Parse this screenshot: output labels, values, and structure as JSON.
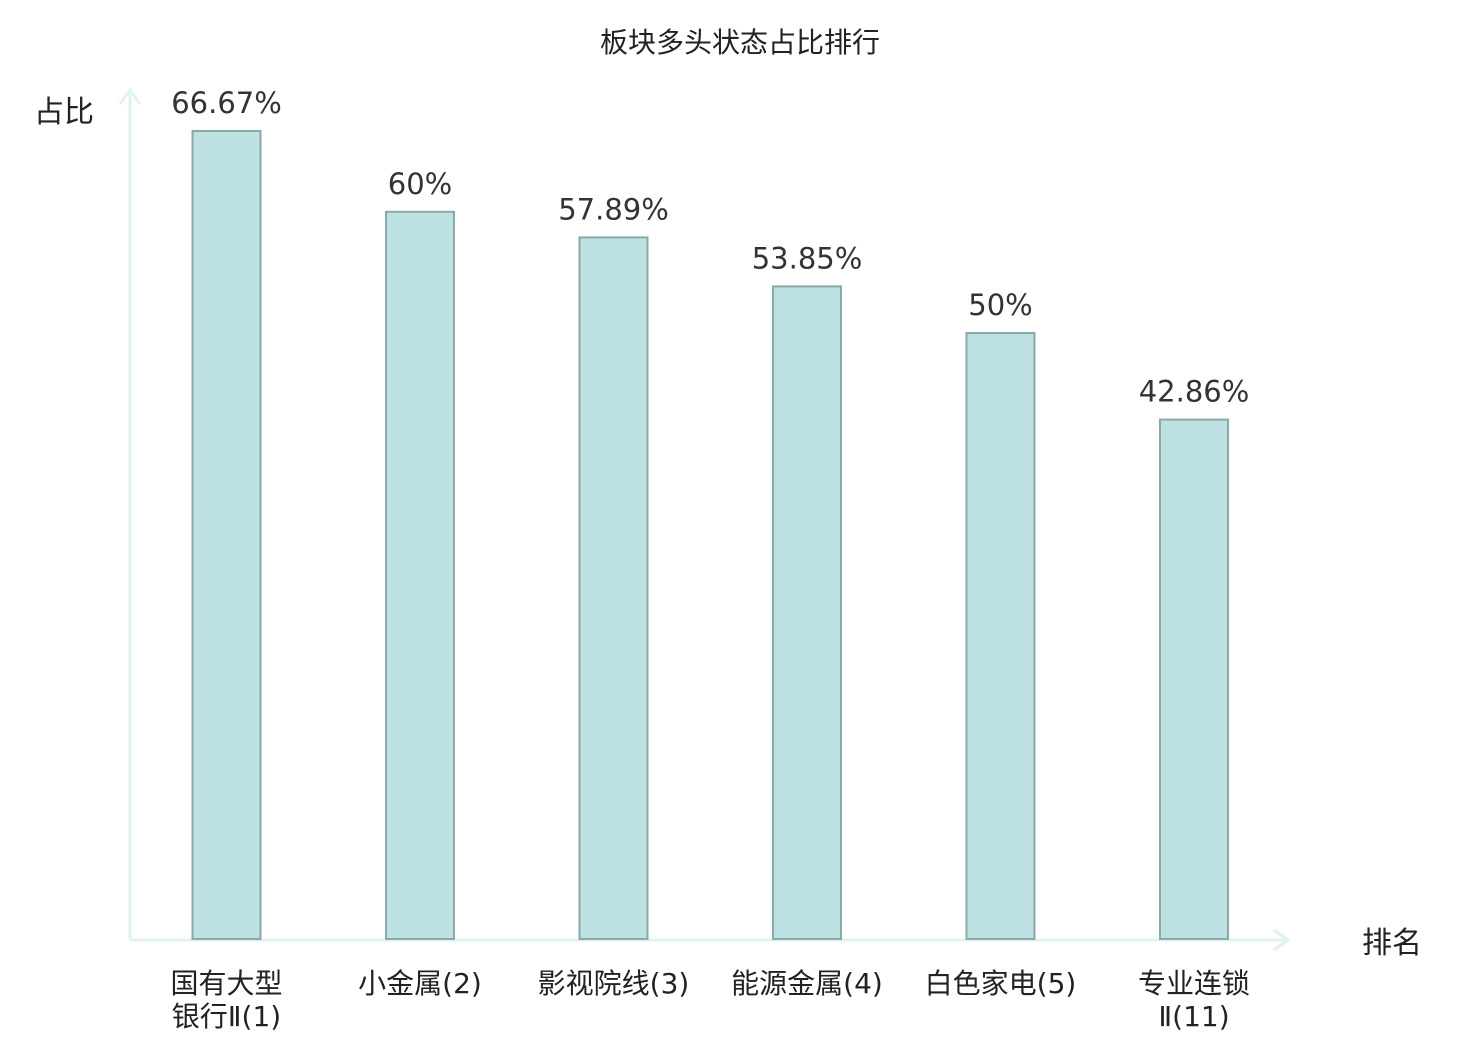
{
  "chart_data": {
    "type": "bar",
    "title": "板块多头状态占比排行",
    "xlabel": "排名",
    "ylabel": "占比",
    "categories": [
      "国有大型银行Ⅱ(1)",
      "小金属(2)",
      "影视院线(3)",
      "能源金属(4)",
      "白色家电(5)",
      "专业连锁Ⅱ(11)"
    ],
    "category_lines": [
      [
        "国有大型",
        "银行Ⅱ(1)"
      ],
      [
        "小金属(2)"
      ],
      [
        "影视院线(3)"
      ],
      [
        "能源金属(4)"
      ],
      [
        "白色家电(5)"
      ],
      [
        "专业连锁",
        "Ⅱ(11)"
      ]
    ],
    "values": [
      66.67,
      60,
      57.89,
      53.85,
      50,
      42.86
    ],
    "value_labels": [
      "66.67%",
      "60%",
      "57.89%",
      "53.85%",
      "50%",
      "42.86%"
    ],
    "highlight_index": 5,
    "ylim": [
      0,
      66.67
    ],
    "grid": false,
    "colors": {
      "bar_fill": "#bde1e3",
      "bar_stroke": "#8aa9ab",
      "axis": "#e0f3f1",
      "highlight_text": "#e8202a",
      "text": "#222222",
      "value_text": "#333333"
    }
  }
}
